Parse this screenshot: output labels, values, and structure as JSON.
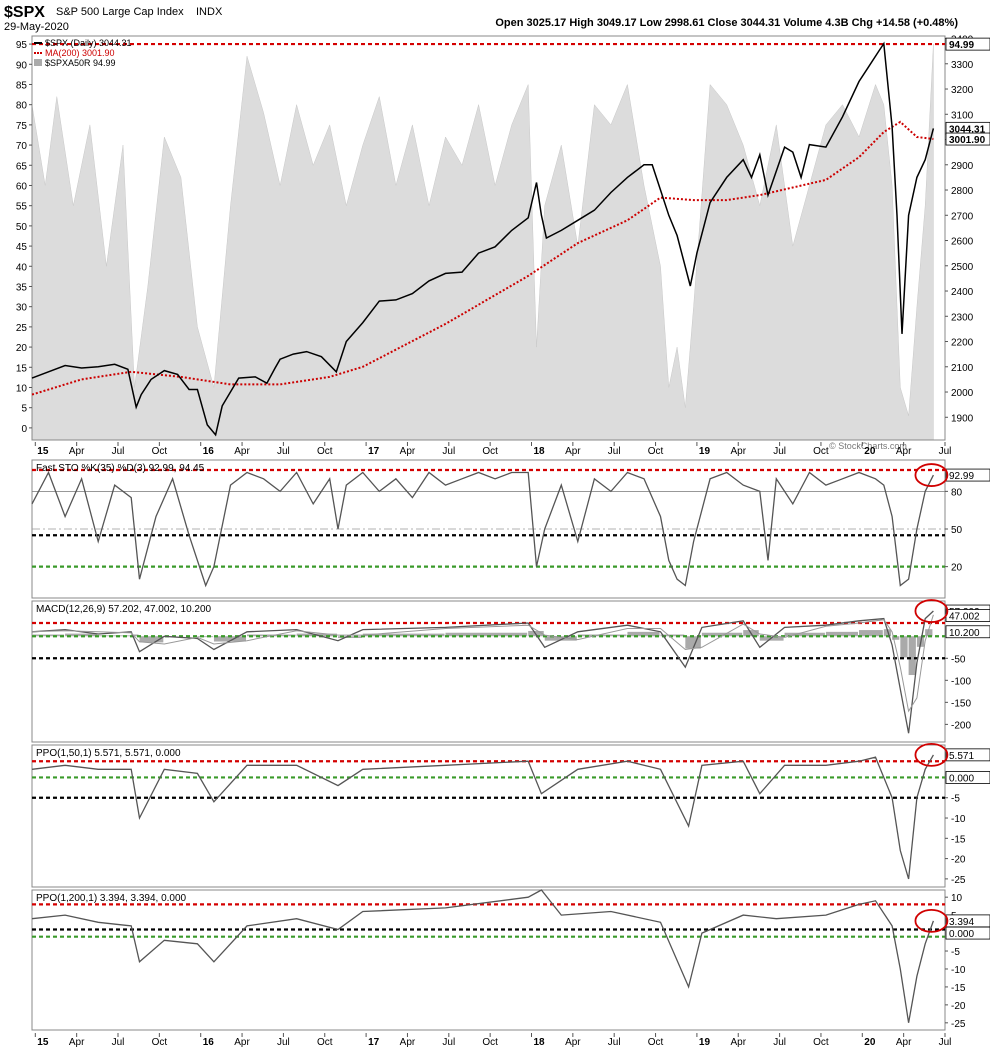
{
  "header": {
    "symbol": "$SPX",
    "name": "S&P 500 Large Cap Index",
    "exchange": "INDX",
    "date": "29-May-2020",
    "stats": "Open 3025.17  High 3049.17  Low 2998.61  Close 3044.31  Volume 4.3B  Chg +14.58 (+0.48%)",
    "watermark": "© StockCharts.com"
  },
  "x_labels": [
    "15",
    "Apr",
    "Jul",
    "Oct",
    "16",
    "Apr",
    "Jul",
    "Oct",
    "17",
    "Apr",
    "Jul",
    "Oct",
    "18",
    "Apr",
    "Jul",
    "Oct",
    "19",
    "Apr",
    "Jul",
    "Oct",
    "20",
    "Apr",
    "Jul"
  ],
  "x_bold": [
    "15",
    "16",
    "17",
    "18",
    "19",
    "20"
  ],
  "colors": {
    "price": "#000000",
    "ma": "#cc0000",
    "shade": "#dcdcdc",
    "osc": "#555555",
    "red_dash": "#d40000",
    "green_dash": "#3a9a2a",
    "black_dash": "#000000",
    "circle": "#d00000"
  },
  "chart_data": [
    {
      "type": "line",
      "panel": "price",
      "legend": [
        "$SPX (Daily) 3044.31",
        "MA(200) 3001.90",
        "$SPXA50R 94.99"
      ],
      "right_axis_ticks": [
        1900,
        2000,
        2100,
        2200,
        2300,
        2400,
        2500,
        2600,
        2700,
        2800,
        2900,
        3000,
        3100,
        3200,
        3300,
        3400
      ],
      "left_axis_ticks": [
        0,
        5,
        10,
        15,
        20,
        25,
        30,
        35,
        40,
        45,
        50,
        55,
        60,
        65,
        70,
        75,
        80,
        85,
        90,
        95
      ],
      "right_ylim": [
        1810,
        3410
      ],
      "left_ylim": [
        -3,
        97
      ],
      "tags": [
        {
          "text": "94.99",
          "value": 94.99,
          "axis": "left"
        },
        {
          "text": "3044.31",
          "value": 3044.31,
          "axis": "right"
        },
        {
          "text": "3001.90",
          "value": 3001.9,
          "axis": "right"
        }
      ],
      "hline_left": 95,
      "price_x": [
        2015.0,
        2015.1,
        2015.2,
        2015.3,
        2015.4,
        2015.5,
        2015.58,
        2015.63,
        2015.66,
        2015.72,
        2015.8,
        2015.88,
        2015.95,
        2016.0,
        2016.06,
        2016.11,
        2016.15,
        2016.25,
        2016.35,
        2016.42,
        2016.47,
        2016.5,
        2016.58,
        2016.66,
        2016.75,
        2016.84,
        2016.9,
        2017.0,
        2017.1,
        2017.2,
        2017.3,
        2017.4,
        2017.5,
        2017.6,
        2017.7,
        2017.8,
        2017.9,
        2018.0,
        2018.05,
        2018.08,
        2018.11,
        2018.2,
        2018.3,
        2018.4,
        2018.5,
        2018.6,
        2018.7,
        2018.75,
        2018.8,
        2018.85,
        2018.9,
        2018.98,
        2019.02,
        2019.1,
        2019.2,
        2019.3,
        2019.35,
        2019.4,
        2019.45,
        2019.55,
        2019.6,
        2019.65,
        2019.7,
        2019.8,
        2019.9,
        2020.0,
        2020.05,
        2020.12,
        2020.15,
        2020.2,
        2020.23,
        2020.26,
        2020.3,
        2020.35,
        2020.4,
        2020.45
      ],
      "price_y": [
        2055,
        2080,
        2105,
        2095,
        2100,
        2110,
        2090,
        1940,
        1990,
        2050,
        2085,
        2070,
        2010,
        2010,
        1870,
        1830,
        1945,
        2055,
        2060,
        2035,
        2095,
        2130,
        2150,
        2160,
        2140,
        2080,
        2200,
        2275,
        2360,
        2365,
        2390,
        2440,
        2470,
        2475,
        2550,
        2575,
        2640,
        2690,
        2830,
        2700,
        2610,
        2640,
        2680,
        2720,
        2790,
        2850,
        2900,
        2900,
        2800,
        2700,
        2620,
        2420,
        2550,
        2750,
        2850,
        2920,
        2850,
        2940,
        2780,
        2970,
        2950,
        2850,
        2980,
        2970,
        3090,
        3230,
        3280,
        3350,
        3380,
        3050,
        2700,
        2230,
        2700,
        2850,
        2920,
        3044
      ],
      "ma_x": [
        2015.0,
        2015.3,
        2015.6,
        2015.9,
        2016.2,
        2016.5,
        2016.8,
        2017.0,
        2017.5,
        2018.0,
        2018.3,
        2018.6,
        2018.8,
        2019.0,
        2019.2,
        2019.4,
        2019.6,
        2019.8,
        2020.0,
        2020.15,
        2020.25,
        2020.35,
        2020.45
      ],
      "ma_y": [
        1990,
        2050,
        2080,
        2060,
        2030,
        2030,
        2060,
        2100,
        2270,
        2460,
        2590,
        2680,
        2770,
        2760,
        2760,
        2780,
        2810,
        2840,
        2930,
        3030,
        3070,
        3010,
        3001.9
      ],
      "breadth_x": [
        2015.0,
        2015.08,
        2015.15,
        2015.25,
        2015.35,
        2015.45,
        2015.55,
        2015.62,
        2015.7,
        2015.8,
        2015.9,
        2016.0,
        2016.1,
        2016.2,
        2016.3,
        2016.4,
        2016.5,
        2016.6,
        2016.7,
        2016.8,
        2016.9,
        2017.0,
        2017.1,
        2017.2,
        2017.3,
        2017.4,
        2017.5,
        2017.6,
        2017.7,
        2017.8,
        2017.9,
        2018.0,
        2018.05,
        2018.1,
        2018.2,
        2018.3,
        2018.4,
        2018.5,
        2018.6,
        2018.7,
        2018.8,
        2018.85,
        2018.9,
        2018.95,
        2019.0,
        2019.1,
        2019.2,
        2019.3,
        2019.4,
        2019.5,
        2019.6,
        2019.7,
        2019.8,
        2019.9,
        2020.0,
        2020.1,
        2020.15,
        2020.2,
        2020.25,
        2020.3,
        2020.35,
        2020.4,
        2020.45
      ],
      "breadth_y": [
        80,
        60,
        82,
        55,
        75,
        40,
        70,
        10,
        35,
        72,
        62,
        25,
        10,
        55,
        92,
        78,
        60,
        80,
        65,
        75,
        55,
        70,
        82,
        60,
        75,
        55,
        72,
        65,
        80,
        60,
        75,
        85,
        20,
        55,
        70,
        45,
        80,
        75,
        85,
        60,
        40,
        10,
        20,
        5,
        30,
        85,
        80,
        70,
        55,
        75,
        45,
        60,
        75,
        80,
        72,
        85,
        80,
        60,
        10,
        3,
        30,
        55,
        95
      ]
    },
    {
      "type": "line",
      "panel": "stochastic",
      "legend": "Fast STO %K(35) %D(3) 92.99, 94.45",
      "ticks": [
        20,
        50,
        80
      ],
      "ylim": [
        -5,
        105
      ],
      "tag": "92.99",
      "x": [
        2015.0,
        2015.1,
        2015.2,
        2015.3,
        2015.4,
        2015.5,
        2015.6,
        2015.65,
        2015.75,
        2015.85,
        2015.95,
        2016.05,
        2016.1,
        2016.2,
        2016.3,
        2016.4,
        2016.5,
        2016.6,
        2016.7,
        2016.8,
        2016.85,
        2016.9,
        2017.0,
        2017.1,
        2017.2,
        2017.3,
        2017.4,
        2017.5,
        2017.6,
        2017.7,
        2017.8,
        2017.9,
        2018.0,
        2018.05,
        2018.1,
        2018.2,
        2018.3,
        2018.4,
        2018.5,
        2018.6,
        2018.7,
        2018.8,
        2018.85,
        2018.9,
        2018.95,
        2019.0,
        2019.1,
        2019.2,
        2019.3,
        2019.4,
        2019.45,
        2019.5,
        2019.6,
        2019.7,
        2019.8,
        2019.9,
        2020.0,
        2020.1,
        2020.15,
        2020.2,
        2020.25,
        2020.3,
        2020.35,
        2020.4,
        2020.45
      ],
      "y": [
        70,
        95,
        60,
        90,
        40,
        85,
        75,
        10,
        60,
        90,
        45,
        5,
        20,
        85,
        95,
        90,
        80,
        95,
        70,
        90,
        50,
        85,
        95,
        80,
        90,
        75,
        95,
        85,
        90,
        95,
        90,
        95,
        95,
        20,
        50,
        85,
        40,
        90,
        80,
        95,
        90,
        60,
        25,
        10,
        5,
        40,
        90,
        95,
        85,
        80,
        25,
        90,
        70,
        95,
        85,
        90,
        95,
        90,
        85,
        60,
        5,
        10,
        50,
        80,
        92.99
      ]
    },
    {
      "type": "line",
      "panel": "macd",
      "legend": "MACD(12,26,9) 57.202, 47.002, 10.200",
      "ticks": [
        -200,
        -150,
        -100,
        -50
      ],
      "ylim": [
        -240,
        80
      ],
      "tags": [
        {
          "text": "57.202",
          "value": 57.202
        },
        {
          "text": "47.002",
          "value": 47.002
        },
        {
          "text": "10.200",
          "value": 10.2
        }
      ],
      "x": [
        2015.0,
        2015.2,
        2015.4,
        2015.6,
        2015.65,
        2015.8,
        2016.0,
        2016.1,
        2016.3,
        2016.6,
        2016.85,
        2017.0,
        2017.5,
        2018.0,
        2018.1,
        2018.3,
        2018.6,
        2018.8,
        2018.95,
        2019.05,
        2019.3,
        2019.4,
        2019.55,
        2019.8,
        2020.0,
        2020.15,
        2020.2,
        2020.25,
        2020.3,
        2020.35,
        2020.4,
        2020.45
      ],
      "y": [
        10,
        15,
        5,
        10,
        -35,
        0,
        -5,
        -30,
        10,
        15,
        -10,
        15,
        20,
        30,
        -25,
        10,
        25,
        10,
        -70,
        20,
        35,
        -25,
        20,
        25,
        35,
        40,
        -20,
        -120,
        -220,
        -60,
        40,
        57.202
      ]
    },
    {
      "type": "line",
      "panel": "ppo50",
      "legend": "PPO(1,50,1) 5.571, 5.571, 0.000",
      "ticks": [
        -25,
        -20,
        -15,
        -10,
        -5
      ],
      "ylim": [
        -27,
        8
      ],
      "tags": [
        {
          "text": "5.571",
          "value": 5.571
        },
        {
          "text": "0.000",
          "value": 0
        }
      ],
      "x": [
        2015.0,
        2015.2,
        2015.4,
        2015.6,
        2015.65,
        2015.8,
        2016.0,
        2016.1,
        2016.3,
        2016.6,
        2016.85,
        2017.0,
        2017.5,
        2018.0,
        2018.08,
        2018.3,
        2018.6,
        2018.8,
        2018.97,
        2019.05,
        2019.3,
        2019.4,
        2019.55,
        2019.8,
        2020.0,
        2020.1,
        2020.2,
        2020.25,
        2020.3,
        2020.35,
        2020.4,
        2020.45
      ],
      "y": [
        2,
        3,
        2,
        2,
        -10,
        2,
        1,
        -6,
        3,
        3,
        -2,
        2,
        3,
        4,
        -4,
        2,
        4,
        2,
        -12,
        3,
        4,
        -4,
        3,
        3,
        4,
        5,
        -5,
        -18,
        -25,
        -5,
        2,
        5.571
      ]
    },
    {
      "type": "line",
      "panel": "ppo200",
      "legend": "PPO(1,200,1) 3.394, 3.394, 0.000",
      "ticks": [
        -25,
        -20,
        -15,
        -10,
        -5,
        5,
        10
      ],
      "ylim": [
        -27,
        12
      ],
      "tags": [
        {
          "text": "3.394",
          "value": 3.394
        },
        {
          "text": "0.000",
          "value": 0
        }
      ],
      "x": [
        2015.0,
        2015.2,
        2015.4,
        2015.6,
        2015.65,
        2015.8,
        2016.0,
        2016.1,
        2016.3,
        2016.6,
        2016.85,
        2017.0,
        2017.5,
        2018.0,
        2018.08,
        2018.2,
        2018.5,
        2018.8,
        2018.97,
        2019.05,
        2019.3,
        2019.5,
        2019.8,
        2020.0,
        2020.1,
        2020.2,
        2020.25,
        2020.3,
        2020.35,
        2020.4,
        2020.45
      ],
      "y": [
        4,
        5,
        3,
        2,
        -8,
        -2,
        -3,
        -8,
        2,
        4,
        1,
        6,
        7,
        10,
        12,
        5,
        6,
        3,
        -15,
        0,
        5,
        4,
        5,
        8,
        9,
        2,
        -10,
        -25,
        -12,
        -3,
        3.394
      ]
    }
  ]
}
